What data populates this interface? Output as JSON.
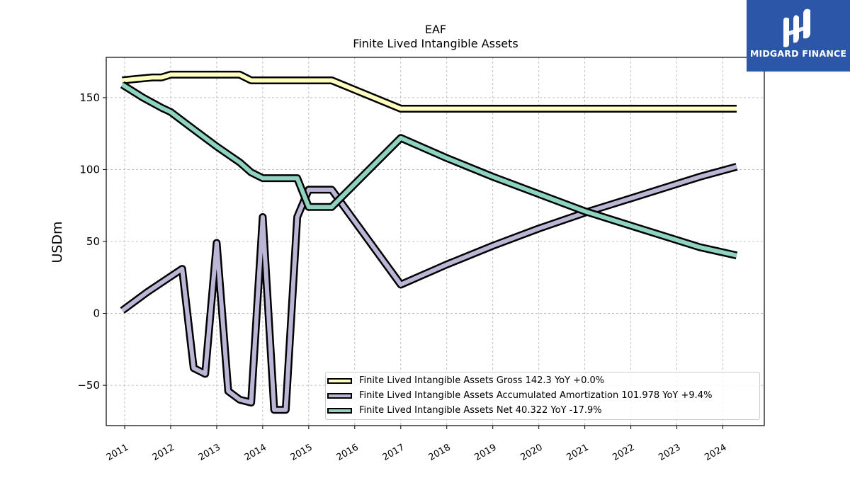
{
  "chart_data": {
    "type": "line",
    "title": "EAF",
    "subtitle": "Finite Lived Intangible Assets",
    "xlabel": "",
    "ylabel": "USDm",
    "ylim": [
      -78,
      178
    ],
    "xlim": [
      2010.6,
      2024.9
    ],
    "x_ticks": [
      "2011",
      "2012",
      "2013",
      "2014",
      "2015",
      "2016",
      "2017",
      "2018",
      "2019",
      "2020",
      "2021",
      "2022",
      "2023",
      "2024"
    ],
    "y_ticks": [
      "−50",
      "0",
      "50",
      "100",
      "150"
    ],
    "y_tick_values": [
      -50,
      0,
      50,
      100,
      150
    ],
    "grid": true,
    "legend_position": "lower-right",
    "series": [
      {
        "name": "Finite Lived Intangible Assets Gross  142.3 YoY +0.0%",
        "color": "#ffffc0",
        "x": [
          2010.95,
          2011.25,
          2011.6,
          2011.8,
          2012.0,
          2012.4,
          2012.8,
          2013.2,
          2013.5,
          2013.75,
          2014.2,
          2014.75,
          2015.5,
          2017.0,
          2024.3
        ],
        "y": [
          162,
          163,
          164,
          164,
          166,
          166,
          166,
          166,
          166,
          162,
          162,
          162,
          162,
          142.3,
          142.3
        ]
      },
      {
        "name": "Finite Lived Intangible Assets Accumulated Amortization  101.978 YoY +9.4%",
        "color": "#bcb6d6",
        "x": [
          2010.95,
          2011.5,
          2012.25,
          2012.5,
          2012.75,
          2013.0,
          2013.25,
          2013.5,
          2013.75,
          2014.0,
          2014.25,
          2014.5,
          2014.75,
          2015.0,
          2015.5,
          2017.0,
          2018.0,
          2019.0,
          2020.0,
          2021.0,
          2022.0,
          2023.0,
          2023.5,
          2024.3
        ],
        "y": [
          2,
          15,
          31,
          -38,
          -42,
          49,
          -54,
          -60,
          -62,
          67,
          -67,
          -67,
          67,
          86,
          86,
          20,
          34,
          47,
          59,
          70,
          80,
          90,
          95,
          102
        ]
      },
      {
        "name": "Finite Lived Intangible Assets Net  40.322 YoY -17.9%",
        "color": "#8dd3c0",
        "x": [
          2010.95,
          2011.4,
          2011.8,
          2012.0,
          2012.5,
          2013.0,
          2013.5,
          2013.75,
          2014.0,
          2014.25,
          2014.75,
          2015.0,
          2015.5,
          2017.0,
          2018.0,
          2019.0,
          2020.0,
          2021.0,
          2022.0,
          2023.0,
          2023.5,
          2024.3
        ],
        "y": [
          159,
          150,
          143,
          140,
          128,
          116,
          105,
          98,
          94,
          94,
          94,
          74,
          74,
          122,
          108,
          95,
          83,
          71,
          61,
          51,
          46,
          40.3
        ]
      }
    ]
  },
  "logo": {
    "text": "MIDGARD FINANCE",
    "icon": "midgard-logo-icon"
  }
}
